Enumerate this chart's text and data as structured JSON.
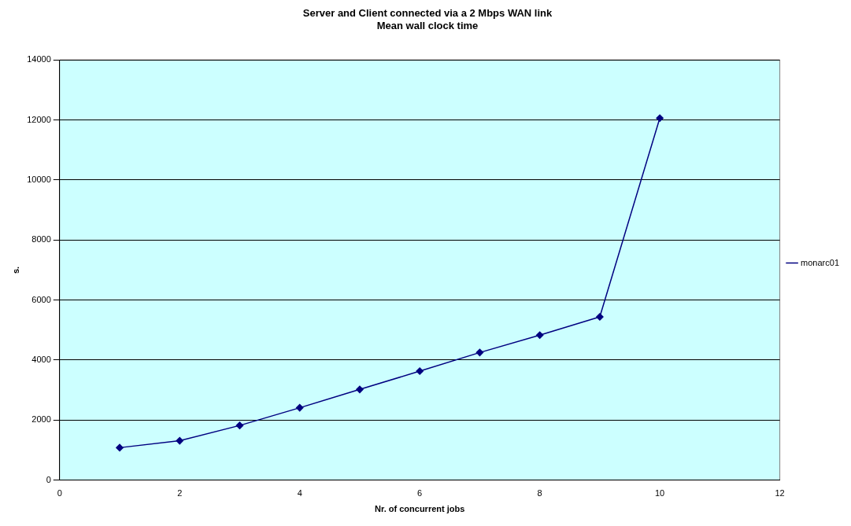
{
  "chart_data": {
    "type": "line",
    "title": "Server and Client connected via a 2 Mbps WAN link\nMean wall clock time",
    "xlabel": "Nr. of concurrent jobs",
    "ylabel": "s.",
    "x": [
      1,
      2,
      3,
      4,
      5,
      6,
      7,
      8,
      9,
      10
    ],
    "series": [
      {
        "name": "monarc01",
        "color": "#000080",
        "values": [
          1080,
          1310,
          1820,
          2410,
          3020,
          3630,
          4250,
          4830,
          5440,
          12060
        ]
      }
    ],
    "xlim": [
      0,
      12
    ],
    "xticks": [
      0,
      2,
      4,
      6,
      8,
      10,
      12
    ],
    "ylim": [
      0,
      14000
    ],
    "yticks": [
      0,
      2000,
      4000,
      6000,
      8000,
      10000,
      12000,
      14000
    ],
    "grid": "y",
    "legend": "right",
    "marker": "diamond",
    "line_style": "solid"
  }
}
